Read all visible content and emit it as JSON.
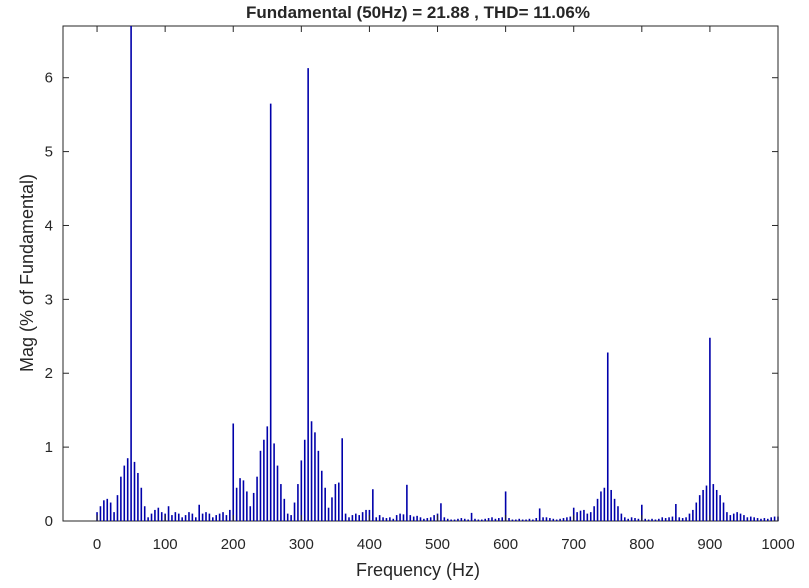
{
  "chart_data": {
    "type": "bar",
    "title": "Fundamental (50Hz) = 21.88 , THD= 11.06%",
    "xlabel": "Frequency (Hz)",
    "ylabel": "Mag (% of Fundamental)",
    "xlim": [
      -50,
      1000
    ],
    "ylim": [
      0,
      6.7
    ],
    "x_ticks": [
      0,
      100,
      200,
      300,
      400,
      500,
      600,
      700,
      800,
      900,
      1000
    ],
    "y_ticks": [
      0,
      1,
      2,
      3,
      4,
      5,
      6
    ],
    "grid": false,
    "legend": false,
    "bar_color": "#0000aa",
    "series": [
      {
        "x": [
          0,
          5,
          10,
          15,
          20,
          25,
          30,
          35,
          40,
          45,
          50,
          55,
          60,
          65,
          70,
          75,
          80,
          85,
          90,
          95,
          100,
          105,
          110,
          115,
          120,
          125,
          130,
          135,
          140,
          145,
          150,
          155,
          160,
          165,
          170,
          175,
          180,
          185,
          190,
          195,
          200,
          205,
          210,
          215,
          220,
          225,
          230,
          235,
          240,
          245,
          250,
          255,
          260,
          265,
          270,
          275,
          280,
          285,
          290,
          295,
          300,
          305,
          310,
          315,
          320,
          325,
          330,
          335,
          340,
          345,
          350,
          355,
          360,
          365,
          370,
          375,
          380,
          385,
          390,
          395,
          400,
          405,
          410,
          415,
          420,
          425,
          430,
          435,
          440,
          445,
          450,
          455,
          460,
          465,
          470,
          475,
          480,
          485,
          490,
          495,
          500,
          505,
          510,
          515,
          520,
          525,
          530,
          535,
          540,
          545,
          550,
          555,
          560,
          565,
          570,
          575,
          580,
          585,
          590,
          595,
          600,
          605,
          610,
          615,
          620,
          625,
          630,
          635,
          640,
          645,
          650,
          655,
          660,
          665,
          670,
          675,
          680,
          685,
          690,
          695,
          700,
          705,
          710,
          715,
          720,
          725,
          730,
          735,
          740,
          745,
          750,
          755,
          760,
          765,
          770,
          775,
          780,
          785,
          790,
          795,
          800,
          805,
          810,
          815,
          820,
          825,
          830,
          835,
          840,
          845,
          850,
          855,
          860,
          865,
          870,
          875,
          880,
          885,
          890,
          895,
          900,
          905,
          910,
          915,
          920,
          925,
          930,
          935,
          940,
          945,
          950,
          955,
          960,
          965,
          970,
          975,
          980,
          985,
          990,
          995,
          1000
        ],
        "values": [
          0.12,
          0.2,
          0.28,
          0.3,
          0.25,
          0.12,
          0.35,
          0.6,
          0.75,
          0.85,
          6.7,
          0.8,
          0.65,
          0.45,
          0.2,
          0.05,
          0.1,
          0.15,
          0.18,
          0.12,
          0.1,
          0.2,
          0.08,
          0.12,
          0.1,
          0.05,
          0.08,
          0.12,
          0.1,
          0.05,
          0.22,
          0.1,
          0.12,
          0.1,
          0.05,
          0.08,
          0.1,
          0.12,
          0.08,
          0.15,
          1.32,
          0.45,
          0.58,
          0.55,
          0.4,
          0.2,
          0.38,
          0.6,
          0.95,
          1.1,
          1.28,
          5.65,
          1.05,
          0.75,
          0.5,
          0.3,
          0.1,
          0.08,
          0.25,
          0.5,
          0.82,
          1.1,
          6.13,
          1.35,
          1.2,
          0.95,
          0.68,
          0.45,
          0.18,
          0.32,
          0.5,
          0.52,
          1.12,
          0.1,
          0.05,
          0.08,
          0.1,
          0.08,
          0.12,
          0.15,
          0.15,
          0.43,
          0.05,
          0.08,
          0.05,
          0.04,
          0.05,
          0.03,
          0.08,
          0.1,
          0.09,
          0.49,
          0.08,
          0.06,
          0.07,
          0.05,
          0.03,
          0.04,
          0.05,
          0.08,
          0.1,
          0.24,
          0.05,
          0.03,
          0.02,
          0.02,
          0.03,
          0.04,
          0.03,
          0.02,
          0.11,
          0.03,
          0.02,
          0.02,
          0.03,
          0.04,
          0.05,
          0.03,
          0.04,
          0.05,
          0.4,
          0.04,
          0.02,
          0.02,
          0.03,
          0.02,
          0.02,
          0.03,
          0.02,
          0.04,
          0.17,
          0.05,
          0.05,
          0.04,
          0.03,
          0.02,
          0.03,
          0.04,
          0.05,
          0.06,
          0.18,
          0.12,
          0.14,
          0.15,
          0.1,
          0.12,
          0.2,
          0.3,
          0.4,
          0.45,
          2.28,
          0.42,
          0.3,
          0.2,
          0.1,
          0.05,
          0.03,
          0.05,
          0.04,
          0.03,
          0.22,
          0.03,
          0.02,
          0.03,
          0.02,
          0.03,
          0.05,
          0.04,
          0.05,
          0.06,
          0.23,
          0.05,
          0.04,
          0.05,
          0.1,
          0.15,
          0.25,
          0.35,
          0.42,
          0.48,
          2.48,
          0.5,
          0.42,
          0.35,
          0.25,
          0.12,
          0.08,
          0.1,
          0.12,
          0.1,
          0.08,
          0.05,
          0.06,
          0.05,
          0.04,
          0.03,
          0.04,
          0.03,
          0.05,
          0.06,
          0.06
        ]
      }
    ]
  }
}
